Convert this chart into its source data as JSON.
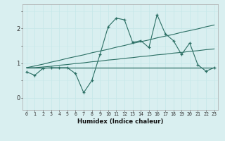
{
  "xlabel": "Humidex (Indice chaleur)",
  "x": [
    0,
    1,
    2,
    3,
    4,
    5,
    6,
    7,
    8,
    9,
    10,
    11,
    12,
    13,
    14,
    15,
    16,
    17,
    18,
    19,
    20,
    21,
    22,
    23
  ],
  "line1": [
    0.75,
    0.65,
    0.85,
    0.87,
    0.87,
    0.87,
    0.7,
    0.15,
    0.5,
    1.25,
    2.05,
    2.3,
    2.25,
    1.6,
    1.65,
    1.45,
    2.4,
    1.85,
    1.65,
    1.25,
    1.58,
    0.95,
    0.77,
    0.87
  ],
  "line_flat": [
    0.87,
    0.87,
    0.87,
    0.87,
    0.87,
    0.87,
    0.87,
    0.87,
    0.87,
    0.87,
    0.87,
    0.87,
    0.87,
    0.87,
    0.87,
    0.87,
    0.87,
    0.87,
    0.87,
    0.87,
    0.87,
    0.87,
    0.87,
    0.87
  ],
  "line_slope1": [
    0.87,
    0.87,
    0.89,
    0.91,
    0.94,
    0.96,
    0.99,
    1.01,
    1.04,
    1.06,
    1.09,
    1.11,
    1.14,
    1.16,
    1.19,
    1.21,
    1.24,
    1.26,
    1.29,
    1.31,
    1.34,
    1.36,
    1.39,
    1.41
  ],
  "line_slope2": [
    0.87,
    0.92,
    0.97,
    1.03,
    1.08,
    1.14,
    1.19,
    1.24,
    1.3,
    1.35,
    1.4,
    1.46,
    1.51,
    1.57,
    1.62,
    1.67,
    1.73,
    1.78,
    1.83,
    1.89,
    1.94,
    1.99,
    2.05,
    2.1
  ],
  "color": "#2a6e63",
  "bg_color": "#d9eff0",
  "grid_color": "#b8dde0",
  "ylim": [
    -0.35,
    2.7
  ],
  "yticks": [
    0,
    1,
    2
  ],
  "xlim": [
    -0.5,
    23.5
  ],
  "xtick_labels": [
    "0",
    "1",
    "2",
    "3",
    "4",
    "5",
    "6",
    "7",
    "8",
    "9",
    "10",
    "11",
    "12",
    "13",
    "14",
    "15",
    "16",
    "17",
    "18",
    "19",
    "20",
    "21",
    "22",
    "23"
  ]
}
